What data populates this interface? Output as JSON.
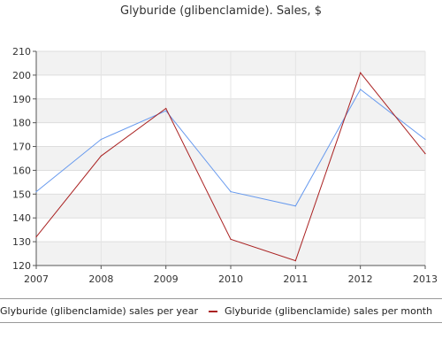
{
  "chart_data": {
    "type": "line",
    "title": "Glyburide (glibenclamide). Sales, $",
    "xlabel": "",
    "ylabel": "",
    "categories": [
      "2007",
      "2008",
      "2009",
      "2010",
      "2011",
      "2012",
      "2013"
    ],
    "series": [
      {
        "name": "Glyburide (glibenclamide) sales per year",
        "color": "#6699ee",
        "values": [
          151,
          173,
          185,
          151,
          145,
          194,
          173
        ]
      },
      {
        "name": "Glyburide (glibenclamide) sales per month",
        "color": "#aa2222",
        "values": [
          132,
          166,
          186,
          131,
          122,
          201,
          167
        ]
      }
    ],
    "ylim": [
      120,
      210
    ],
    "yticks": [
      "120",
      "130",
      "140",
      "150",
      "160",
      "170",
      "180",
      "190",
      "200",
      "210"
    ],
    "grid": true,
    "legend_position": "bottom"
  }
}
